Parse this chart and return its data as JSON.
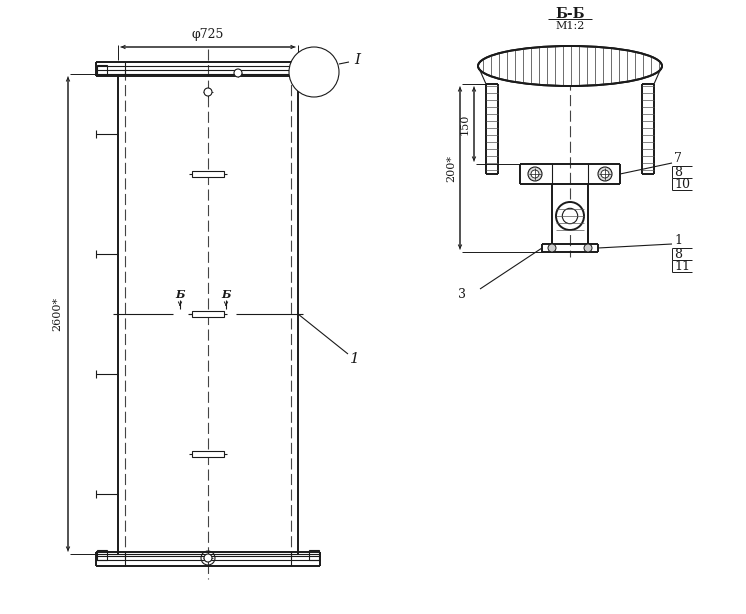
{
  "bg_color": "#ffffff",
  "line_color": "#1a1a1a",
  "dim_phi": "φ725",
  "dim_height": "2600*",
  "dim_150": "150",
  "dim_200": "200*",
  "title_bb": "Б-Б",
  "title_scale": "М1:2"
}
